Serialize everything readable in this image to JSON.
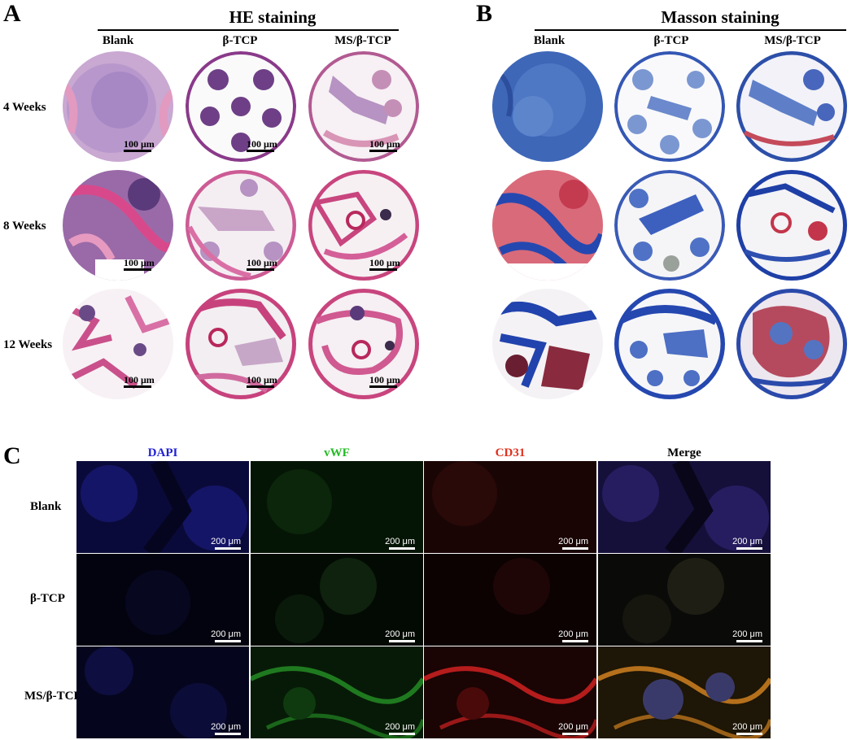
{
  "panels": {
    "A": {
      "letter": "A",
      "title": "HE staining",
      "columns": [
        "Blank",
        "β-TCP",
        "MS/β-TCP"
      ],
      "rows": [
        "4 Weeks",
        "8 Weeks",
        "12 Weeks"
      ],
      "scale_label": "100 μm"
    },
    "B": {
      "letter": "B",
      "title": "Masson staining",
      "columns": [
        "Blank",
        "β-TCP",
        "MS/β-TCP"
      ]
    },
    "C": {
      "letter": "C",
      "columns": [
        {
          "label": "DAPI",
          "color": "#1f1fd6"
        },
        {
          "label": "vWF",
          "color": "#22bb22"
        },
        {
          "label": "CD31",
          "color": "#e0301e"
        },
        {
          "label": "Merge",
          "color": "#000000"
        }
      ],
      "rows": [
        "Blank",
        "β-TCP",
        "MS/β-TCP"
      ],
      "scale_label": "200 μm"
    }
  },
  "colors": {
    "he_tissue": "#e9a9c6",
    "he_bone": "#c43c78",
    "he_nuclei": "#5a3a7a",
    "masson_collagen": "#2a4fb8",
    "masson_red": "#b8283c",
    "dapi": "#1f1fd6",
    "vwf": "#1f8a1f",
    "cd31": "#c41d1d"
  }
}
